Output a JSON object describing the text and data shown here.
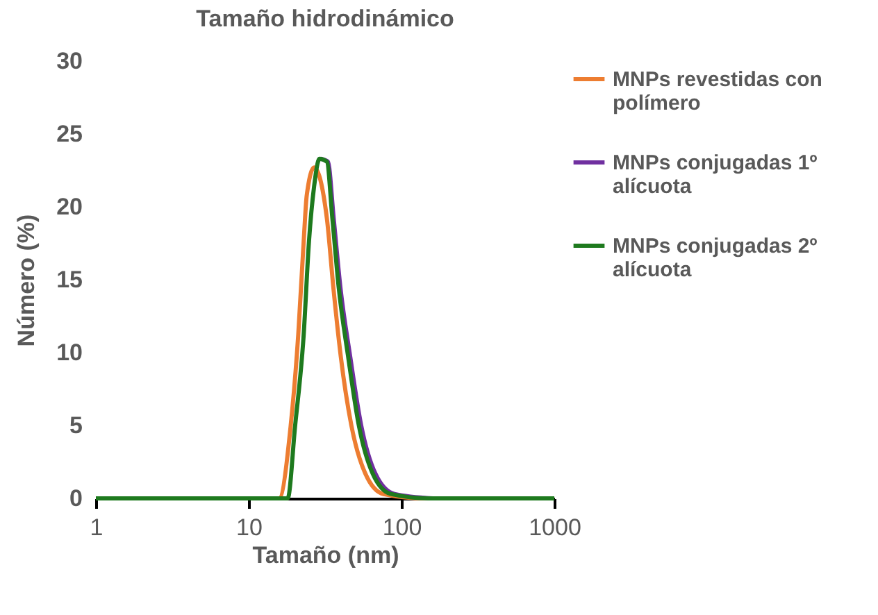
{
  "chart_data": {
    "type": "line",
    "title": "Tamaño hidrodinámico",
    "xlabel": "Tamaño (nm)",
    "ylabel": "Número (%)",
    "log": "x",
    "xlim": [
      1,
      1000
    ],
    "xticks": [
      1,
      10,
      100,
      1000
    ],
    "ylim": [
      0,
      30
    ],
    "yticks": [
      0,
      5,
      10,
      15,
      20,
      25,
      30
    ],
    "grid": false,
    "legend": "right",
    "marker": "none",
    "line_style": "solid",
    "series": [
      {
        "name": "MNPs revestidas con polímero",
        "color": "#ed7d31",
        "x": [
          1,
          15.8,
          18.8,
          21.1,
          22.9,
          24.0,
          26.8,
          32.5,
          35.8,
          40.1,
          47.0,
          58.0,
          76.2,
          145,
          1000
        ],
        "values": [
          0,
          0,
          4.9,
          11.2,
          17.6,
          20.8,
          22.7,
          19.2,
          14.5,
          9.7,
          5.0,
          1.7,
          0.3,
          0,
          0
        ]
      },
      {
        "name": "MNPs conjugadas 1º alícuota",
        "color": "#7030a0",
        "x": [
          29.6,
          33.0,
          36.0,
          39.8,
          46.2,
          54.5,
          67.5,
          90.0,
          160
        ],
        "values": [
          23.3,
          23.1,
          19.2,
          14.5,
          9.7,
          5.0,
          1.7,
          0.3,
          0
        ]
      },
      {
        "name": "MNPs conjugadas 2º alícuota",
        "color": "#1e7a1e",
        "x": [
          1,
          18.0,
          20.1,
          22.9,
          24.8,
          26.8,
          29.1,
          32.5,
          35.3,
          38.8,
          44.8,
          52.6,
          64.8,
          85.2,
          150,
          1000
        ],
        "values": [
          0,
          0,
          4.9,
          11.2,
          17.6,
          21.4,
          23.3,
          23.1,
          19.2,
          14.5,
          9.7,
          5.0,
          1.7,
          0.3,
          0,
          0
        ]
      }
    ]
  }
}
